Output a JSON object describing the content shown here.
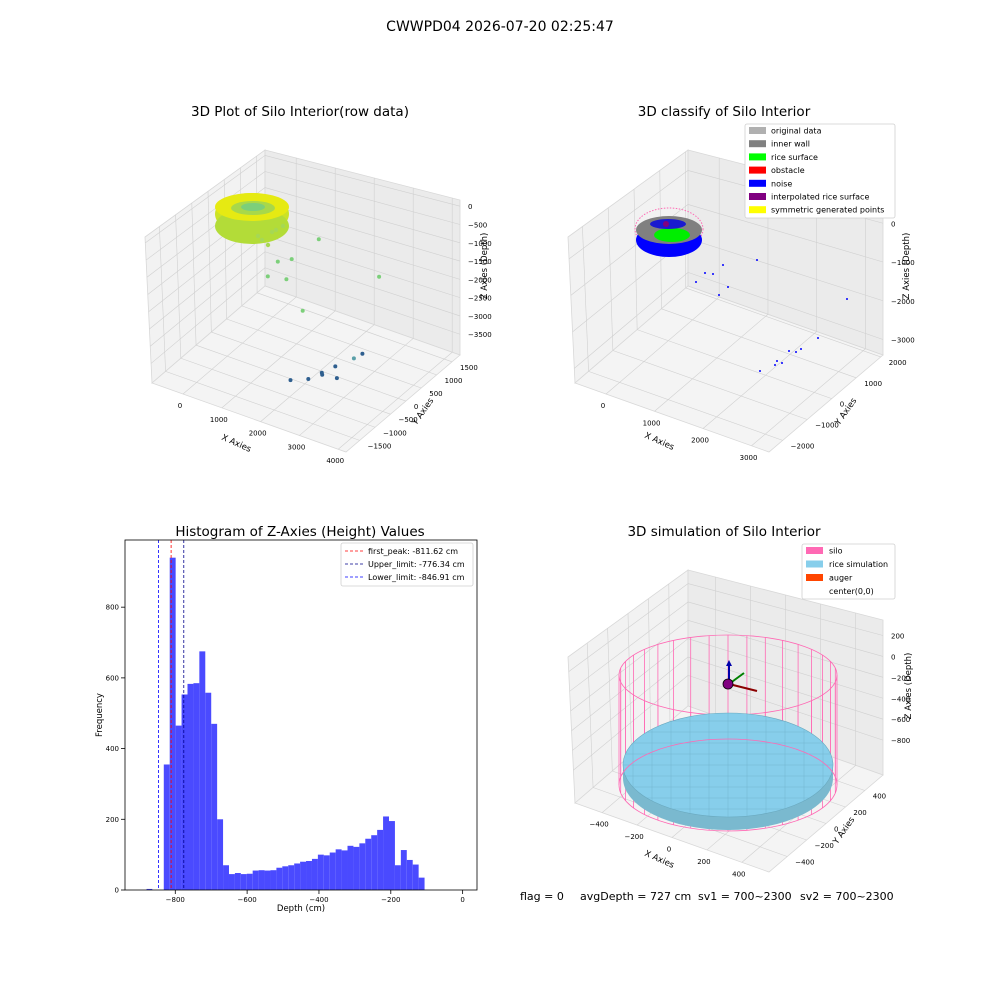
{
  "figure_title": "CWWPD04 2026-07-20 02:25:47",
  "footer": {
    "flag": "flag = 0",
    "avg_depth": "avgDepth = 727 cm",
    "sv1": "sv1 = 700~2300",
    "sv2": "sv2 = 700~2300"
  },
  "colors": {
    "rice_surface": "#00ff00",
    "inner_wall": "#808080",
    "original_data": "#b0b0b0",
    "obstacle": "#ff0000",
    "noise": "#0000ff",
    "interpolated": "#800080",
    "symmetric": "#ffff00",
    "silo": "#ff69b4",
    "rice_sim": "#87ceeb",
    "auger": "#ff4500",
    "hist_bar": "#4a4aff"
  },
  "chart_data": [
    {
      "type": "scatter",
      "title": "3D Plot of Silo Interior(row data)",
      "xlabel": "X Axies",
      "ylabel": "Y Axies",
      "zlabel": "Z Axies (Depth)",
      "x_ticks": [
        "0",
        "1000",
        "2000",
        "3000",
        "4000"
      ],
      "y_ticks": [
        "−1500",
        "−1000",
        "−500",
        "0",
        "500",
        "1000",
        "1500"
      ],
      "z_ticks": [
        "0",
        "−500",
        "−1000",
        "−1500",
        "−2000",
        "−2500",
        "−3000",
        "−3500"
      ],
      "points": [
        {
          "x": 2400,
          "y": 1400,
          "z": -2350
        },
        {
          "x": 1400,
          "y": 700,
          "z": -1200
        },
        {
          "x": 3100,
          "y": -300,
          "z": -3100
        },
        {
          "x": 3000,
          "y": 100,
          "z": -3300
        },
        {
          "x": 2900,
          "y": -600,
          "z": -3500
        },
        {
          "x": 2700,
          "y": -400,
          "z": -3400
        },
        {
          "x": 2400,
          "y": -900,
          "z": -3500
        },
        {
          "x": 2600,
          "y": -700,
          "z": -3450
        },
        {
          "x": 2550,
          "y": -650,
          "z": -3450
        },
        {
          "x": 2100,
          "y": -1100,
          "z": -3500
        },
        {
          "x": 1700,
          "y": -200,
          "z": -2400
        },
        {
          "x": 1100,
          "y": 200,
          "z": -1500
        },
        {
          "x": 900,
          "y": 0,
          "z": -1500
        },
        {
          "x": 800,
          "y": -200,
          "z": -1800
        },
        {
          "x": 1200,
          "y": -100,
          "z": -1800
        }
      ]
    },
    {
      "type": "scatter",
      "title": "3D classify of Silo Interior",
      "xlabel": "X Axies",
      "ylabel": "Y Axies",
      "zlabel": "Z Axies (Depth)",
      "x_ticks": [
        "0",
        "1000",
        "2000",
        "3000"
      ],
      "y_ticks": [
        "−2000",
        "−1000",
        "0",
        "1000",
        "2000"
      ],
      "z_ticks": [
        "0",
        "−1000",
        "−2000",
        "−3000"
      ],
      "legend": [
        {
          "label": "original data",
          "color": "#b0b0b0"
        },
        {
          "label": "inner wall",
          "color": "#808080"
        },
        {
          "label": "rice surface",
          "color": "#00ff00"
        },
        {
          "label": "obstacle",
          "color": "#ff0000"
        },
        {
          "label": "noise",
          "color": "#0000ff"
        },
        {
          "label": "interpolated rice surface",
          "color": "#800080"
        },
        {
          "label": "symmetric generated points",
          "color": "#ffff00"
        }
      ],
      "legend_position": "top-right"
    },
    {
      "type": "bar",
      "title": "Histogram of Z-Axies (Height) Values",
      "xlabel": "Depth (cm)",
      "ylabel": "Frequency",
      "xlim": [
        -940,
        40
      ],
      "ylim": [
        0,
        990
      ],
      "x_ticks": [
        -800,
        -600,
        -400,
        -200,
        0
      ],
      "x_tick_labels": [
        "−800",
        "−600",
        "−400",
        "−200",
        "0"
      ],
      "y_ticks": [
        0,
        200,
        400,
        600,
        800
      ],
      "y_tick_labels": [
        "0",
        "200",
        "400",
        "600",
        "800"
      ],
      "bin_width": 16.5,
      "bin_start": -832,
      "values": [
        355,
        940,
        465,
        553,
        583,
        585,
        675,
        558,
        470,
        200,
        70,
        45,
        48,
        45,
        46,
        55,
        56,
        55,
        56,
        63,
        67,
        70,
        75,
        80,
        82,
        88,
        100,
        98,
        106,
        115,
        112,
        125,
        122,
        132,
        145,
        155,
        170,
        208,
        195,
        70,
        113,
        85,
        72,
        35
      ],
      "extra_bars": [
        {
          "x0": -880,
          "x1": -864,
          "value": 3
        }
      ],
      "vlines": [
        {
          "label": "first_peak: -811.62 cm",
          "x": -811.62,
          "color": "#ff0000"
        },
        {
          "label": "Upper_limit: -776.34 cm",
          "x": -776.34,
          "color": "#00008b"
        },
        {
          "label": "Lower_limit: -846.91 cm",
          "x": -846.91,
          "color": "#0000ff"
        }
      ],
      "legend_position": "top-right"
    },
    {
      "type": "surface",
      "title": "3D simulation of Silo Interior",
      "xlabel": "X Axies",
      "ylabel": "Y Axies",
      "zlabel": "Z Axies (Depth)",
      "x_ticks": [
        "−400",
        "−200",
        "0",
        "200",
        "400"
      ],
      "y_ticks": [
        "−400",
        "−200",
        "0",
        "200",
        "400"
      ],
      "z_ticks": [
        "200",
        "0",
        "−200",
        "−400",
        "−600",
        "−800"
      ],
      "legend": [
        {
          "label": "silo",
          "color": "#ff69b4"
        },
        {
          "label": "rice simulation",
          "color": "#87ceeb"
        },
        {
          "label": "auger",
          "color": "#ff4500"
        },
        {
          "label": "center(0,0)",
          "color": ""
        }
      ],
      "legend_position": "top-right"
    }
  ]
}
